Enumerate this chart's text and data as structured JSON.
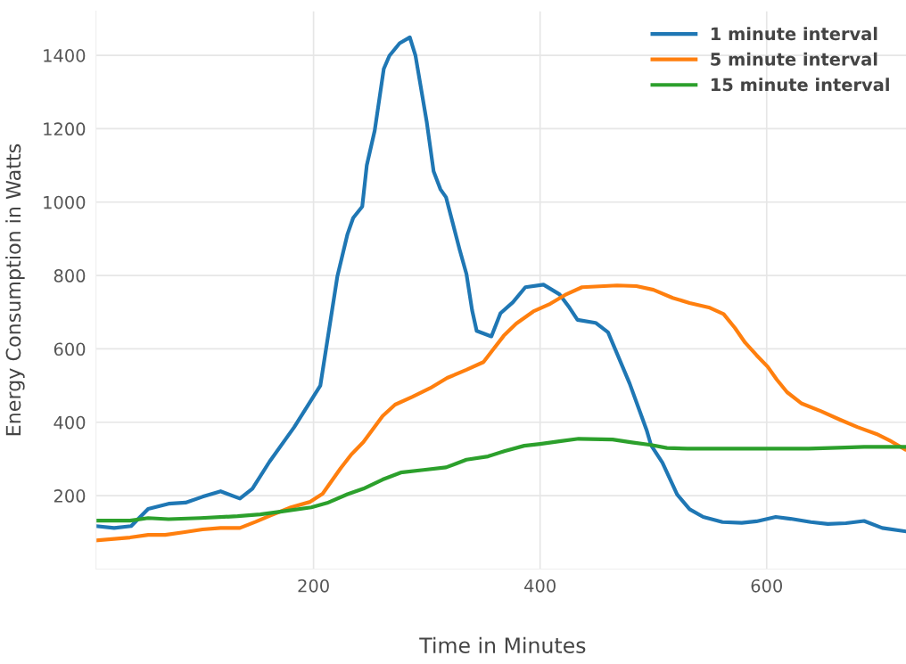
{
  "chart_data": {
    "type": "line",
    "xlabel": "Time in Minutes",
    "ylabel": "Energy Consumption in Watts",
    "xlim": [
      8,
      723
    ],
    "xticks": [
      200,
      400,
      600
    ],
    "ylim": [
      0,
      1520
    ],
    "yticks": [
      200,
      400,
      600,
      800,
      1000,
      1200,
      1400
    ],
    "grid": true,
    "legend": "top right",
    "marker": "none",
    "line_style": "solid",
    "series": [
      {
        "name": "1 minute interval",
        "color": "#1f77b4",
        "x": [
          8,
          24,
          39,
          54,
          72,
          87,
          102,
          118,
          135,
          146,
          161,
          183,
          206,
          221,
          230,
          235,
          243,
          247,
          254,
          262,
          267,
          276,
          285,
          290,
          300,
          306,
          312,
          317,
          329,
          335,
          340,
          344,
          357,
          365,
          376,
          387,
          403,
          417,
          426,
          433,
          449,
          460,
          479,
          488,
          494,
          498,
          508,
          521,
          532,
          544,
          561,
          578,
          591,
          608,
          621,
          639,
          654,
          670,
          686,
          702,
          722
        ],
        "values": [
          117,
          112,
          117,
          164,
          178,
          181,
          197,
          212,
          192,
          219,
          292,
          387,
          500,
          797,
          913,
          957,
          988,
          1100,
          1195,
          1363,
          1399,
          1433,
          1449,
          1399,
          1217,
          1084,
          1035,
          1013,
          870,
          804,
          705,
          649,
          634,
          697,
          727,
          768,
          775,
          749,
          712,
          679,
          671,
          645,
          506,
          430,
          379,
          337,
          290,
          203,
          163,
          142,
          128,
          126,
          130,
          142,
          137,
          128,
          123,
          125,
          131,
          112,
          103
        ]
      },
      {
        "name": "5 minute interval",
        "color": "#ff7f0e",
        "x": [
          8,
          38,
          54,
          69,
          85,
          102,
          118,
          135,
          149,
          162,
          180,
          197,
          208,
          224,
          233,
          244,
          261,
          272,
          287,
          303,
          318,
          335,
          350,
          358,
          368,
          379,
          394,
          409,
          422,
          437,
          468,
          485,
          500,
          517,
          532,
          549,
          562,
          572,
          581,
          591,
          601,
          609,
          618,
          631,
          648,
          664,
          680,
          697,
          710,
          722
        ],
        "values": [
          78,
          86,
          93,
          93,
          100,
          108,
          112,
          112,
          129,
          146,
          168,
          183,
          205,
          275,
          311,
          346,
          417,
          448,
          469,
          493,
          521,
          543,
          564,
          596,
          636,
          669,
          702,
          723,
          747,
          768,
          773,
          771,
          761,
          739,
          725,
          713,
          695,
          657,
          617,
          583,
          551,
          516,
          482,
          451,
          430,
          408,
          387,
          368,
          348,
          326
        ]
      },
      {
        "name": "15 minute interval",
        "color": "#2ca02c",
        "x": [
          8,
          38,
          54,
          72,
          100,
          133,
          153,
          172,
          198,
          212,
          230,
          244,
          261,
          277,
          297,
          317,
          335,
          354,
          369,
          386,
          400,
          417,
          434,
          464,
          481,
          498,
          512,
          530,
          570,
          637,
          669,
          686,
          722
        ],
        "values": [
          132,
          132,
          139,
          136,
          139,
          144,
          149,
          157,
          168,
          180,
          204,
          219,
          244,
          263,
          270,
          277,
          298,
          307,
          322,
          336,
          341,
          348,
          355,
          353,
          345,
          338,
          330,
          328,
          328,
          328,
          331,
          333,
          333
        ]
      }
    ]
  }
}
